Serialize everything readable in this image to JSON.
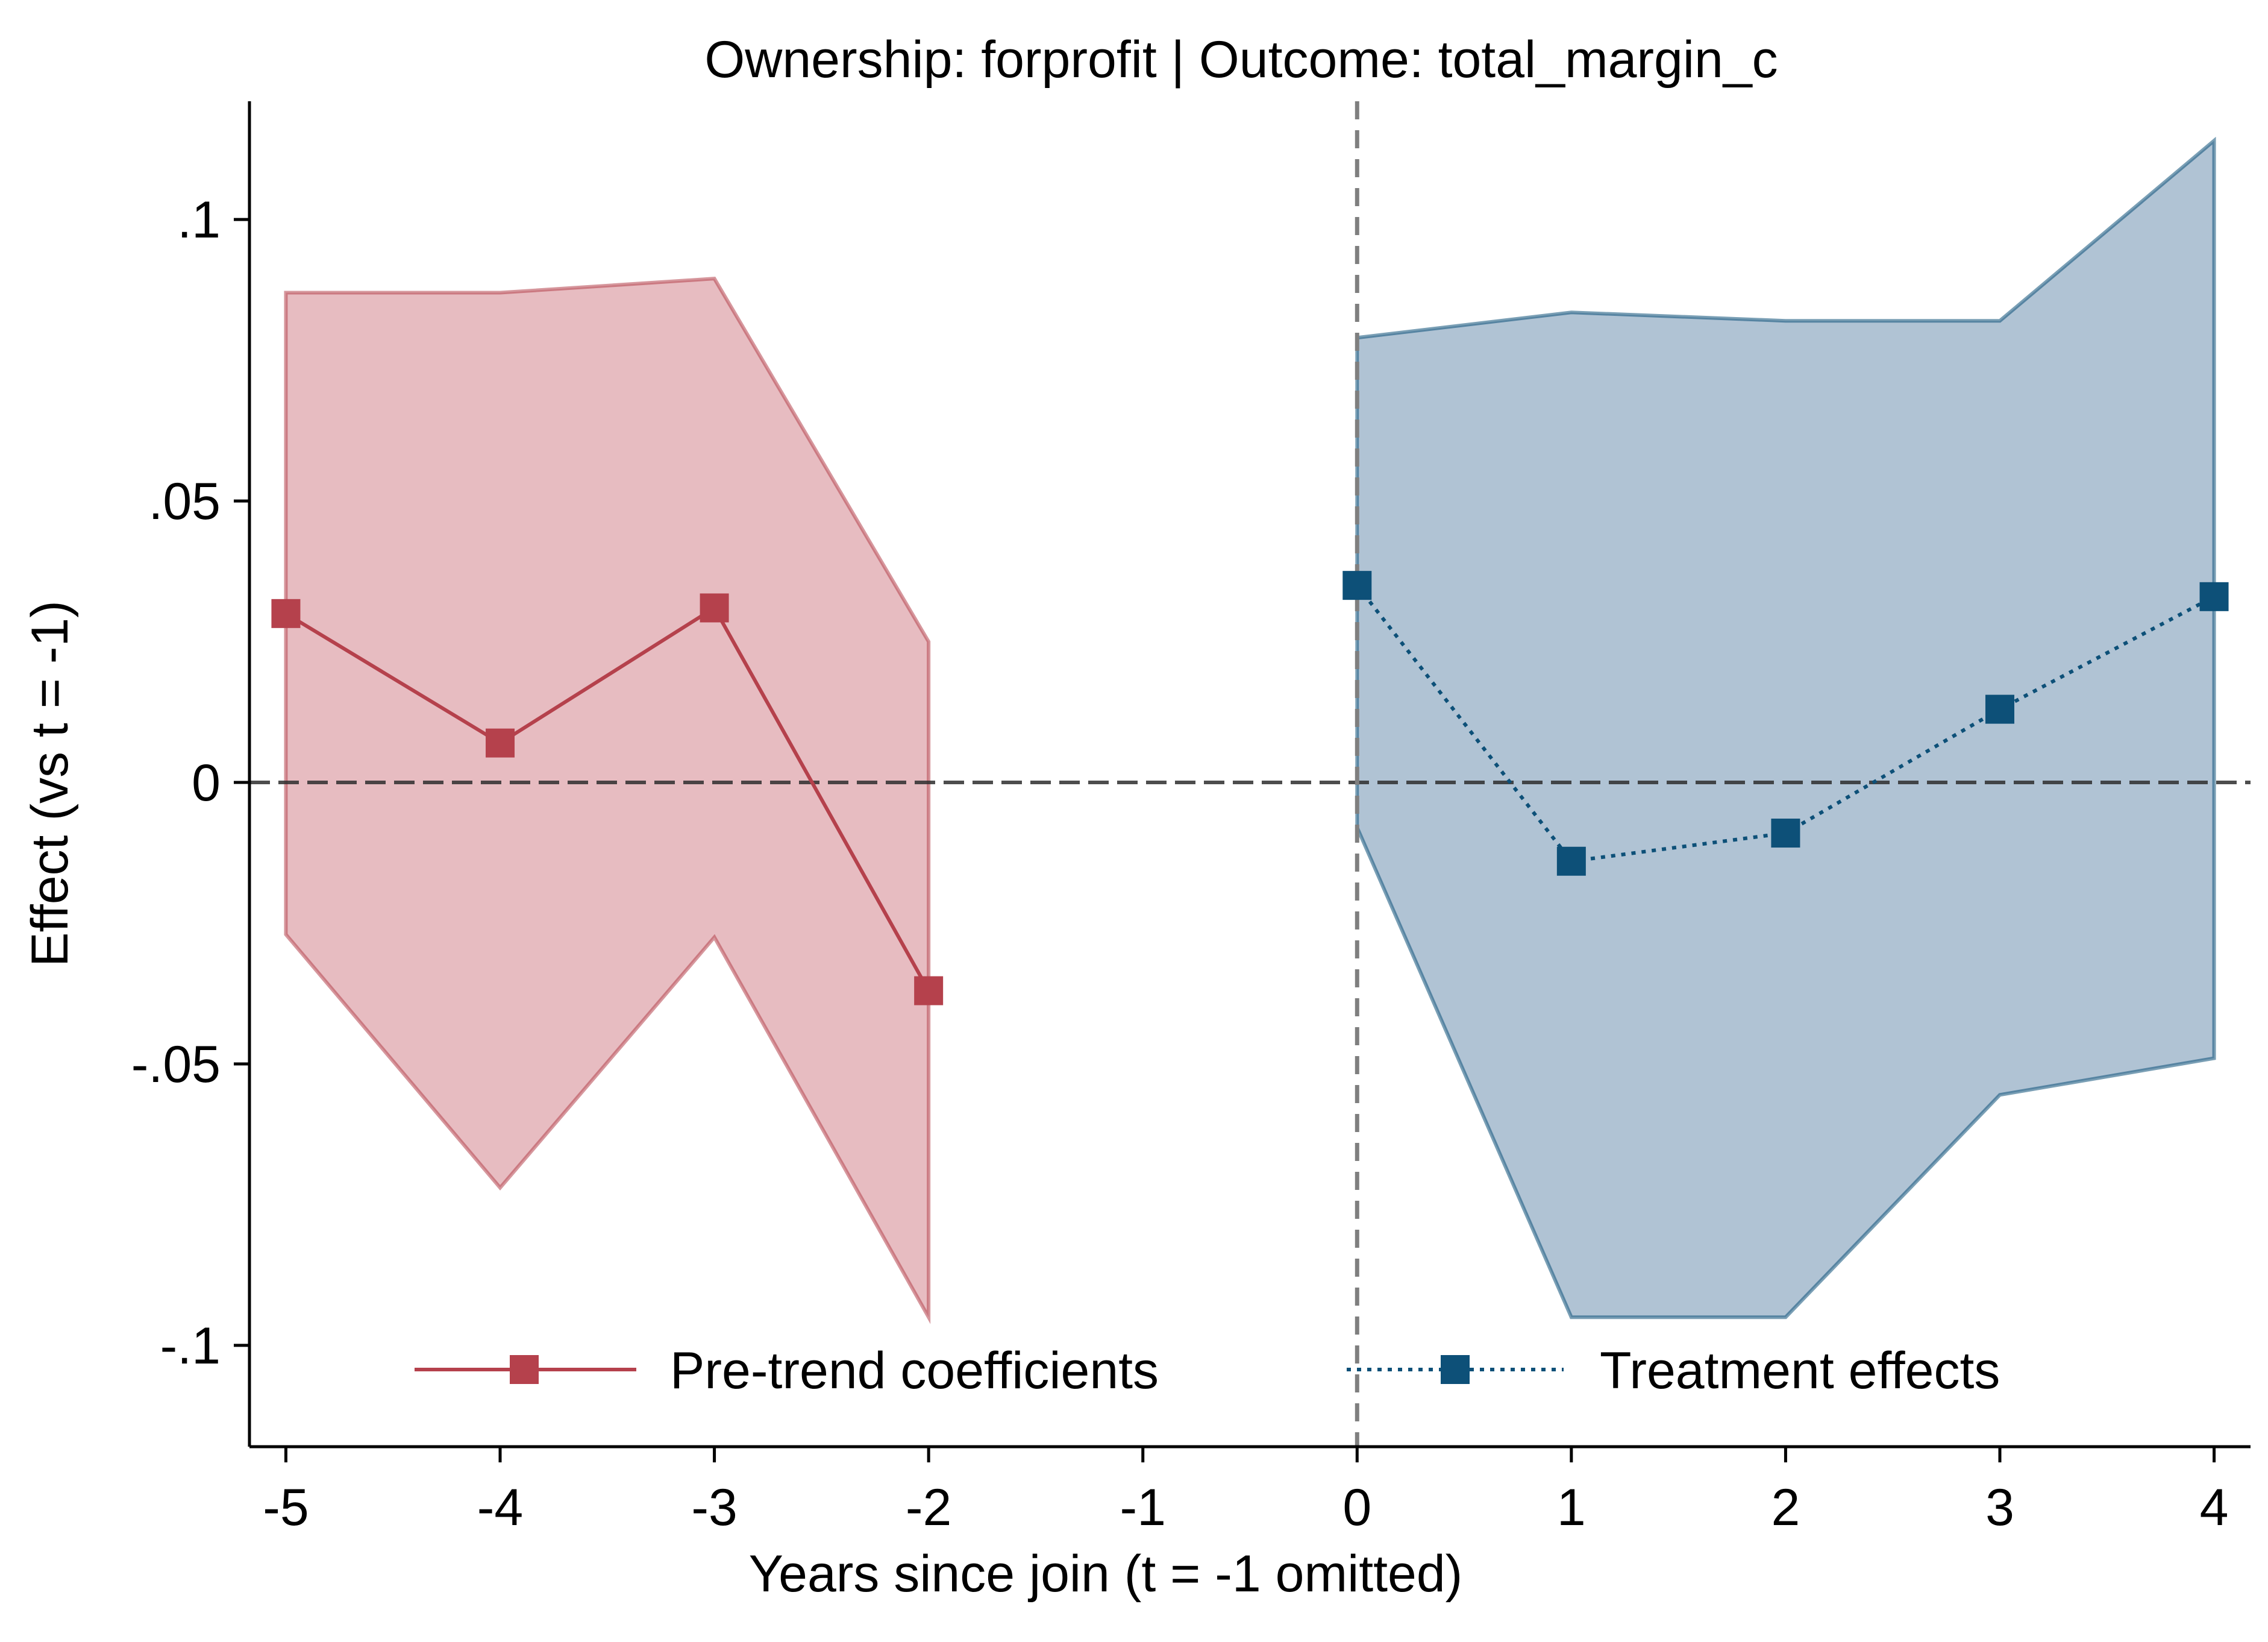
{
  "chart_data": {
    "type": "line",
    "title": "Ownership: forprofit | Outcome: total_margin_c",
    "xlabel": "Years since join (t = -1 omitted)",
    "ylabel": "Effect (vs t = -1)",
    "xlim": [
      -5.17,
      4.17
    ],
    "ylim": [
      -0.118,
      0.121
    ],
    "x_ticks": [
      {
        "value": -5,
        "label": "-5"
      },
      {
        "value": -4,
        "label": "-4"
      },
      {
        "value": -3,
        "label": "-3"
      },
      {
        "value": -2,
        "label": "-2"
      },
      {
        "value": -1,
        "label": "-1"
      },
      {
        "value": 0,
        "label": "0"
      },
      {
        "value": 1,
        "label": "1"
      },
      {
        "value": 2,
        "label": "2"
      },
      {
        "value": 3,
        "label": "3"
      },
      {
        "value": 4,
        "label": "4"
      }
    ],
    "y_ticks": [
      {
        "value": 0.1,
        "label": ".1"
      },
      {
        "value": 0.05,
        "label": ".05"
      },
      {
        "value": 0,
        "label": "0"
      },
      {
        "value": -0.05,
        "label": "-.05"
      },
      {
        "value": -0.1,
        "label": "-.1"
      }
    ],
    "reference_lines": {
      "horizontal_y": 0,
      "vertical_x": 0
    },
    "series": [
      {
        "name": "Pre-trend coefficients",
        "color": "#b5414c",
        "band_color": "#e4b5ba",
        "line_style": "solid",
        "x": [
          -5,
          -4,
          -3,
          -2
        ],
        "values": [
          0.03,
          0.007,
          0.031,
          -0.037
        ],
        "ci_upper": [
          0.087,
          0.087,
          0.0895,
          0.025
        ],
        "ci_lower": [
          -0.027,
          -0.072,
          -0.0275,
          -0.095
        ]
      },
      {
        "name": "Treatment effects",
        "color": "#0d5078",
        "band_color": "#a7bdcf",
        "line_style": "dotted",
        "x": [
          0,
          1,
          2,
          3,
          4
        ],
        "values": [
          0.035,
          -0.014,
          -0.009,
          0.013,
          0.033
        ],
        "ci_upper": [
          0.079,
          0.0835,
          0.082,
          0.082,
          0.114
        ],
        "ci_lower": [
          -0.008,
          -0.095,
          -0.095,
          -0.0555,
          -0.049
        ]
      }
    ],
    "band_clip_min": -0.095,
    "legend_position": "bottom-inside"
  }
}
